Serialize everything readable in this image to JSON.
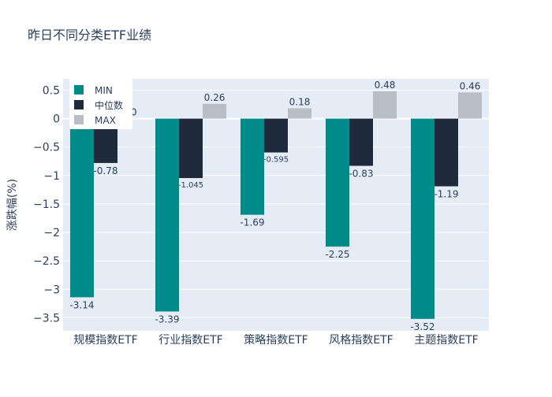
{
  "chart_data": {
    "type": "bar",
    "title": "昨日不同分类ETF业绩",
    "xlabel": "",
    "ylabel": "涨跌幅(%)",
    "ylim": [
      -3.73,
      0.7
    ],
    "yticks": [
      0.5,
      0,
      -0.5,
      -1,
      -1.5,
      -2,
      -2.5,
      -3,
      -3.5
    ],
    "ytick_labels": [
      "0.5",
      "0",
      "−0.5",
      "−1",
      "−1.5",
      "−2",
      "−2.5",
      "−3",
      "−3.5"
    ],
    "categories": [
      "规模指数ETF",
      "行业指数ETF",
      "策略指数ETF",
      "风格指数ETF",
      "主题指数ETF"
    ],
    "series": [
      {
        "name": "MIN",
        "color": "#008B8B",
        "values": [
          -3.14,
          -3.39,
          -1.69,
          -2.25,
          -3.52
        ],
        "labels": [
          "-3.14",
          "-3.39",
          "-1.69",
          "-2.25",
          "-3.52"
        ]
      },
      {
        "name": "中位数",
        "color": "#1F2A3C",
        "values": [
          -0.78,
          -1.045,
          -0.595,
          -0.83,
          -1.19
        ],
        "labels": [
          "-0.78",
          "-1.045",
          "-0.595",
          "-0.83",
          "-1.19"
        ]
      },
      {
        "name": "MAX",
        "color": "#B8BEC6",
        "values": [
          0.0,
          0.26,
          0.18,
          0.48,
          0.46
        ],
        "labels": [
          "0.0",
          "0.26",
          "0.18",
          "0.48",
          "0.46"
        ]
      }
    ],
    "legend": {
      "position": "top-left"
    },
    "grid": true,
    "plot_bg": "#E5ECF6"
  }
}
